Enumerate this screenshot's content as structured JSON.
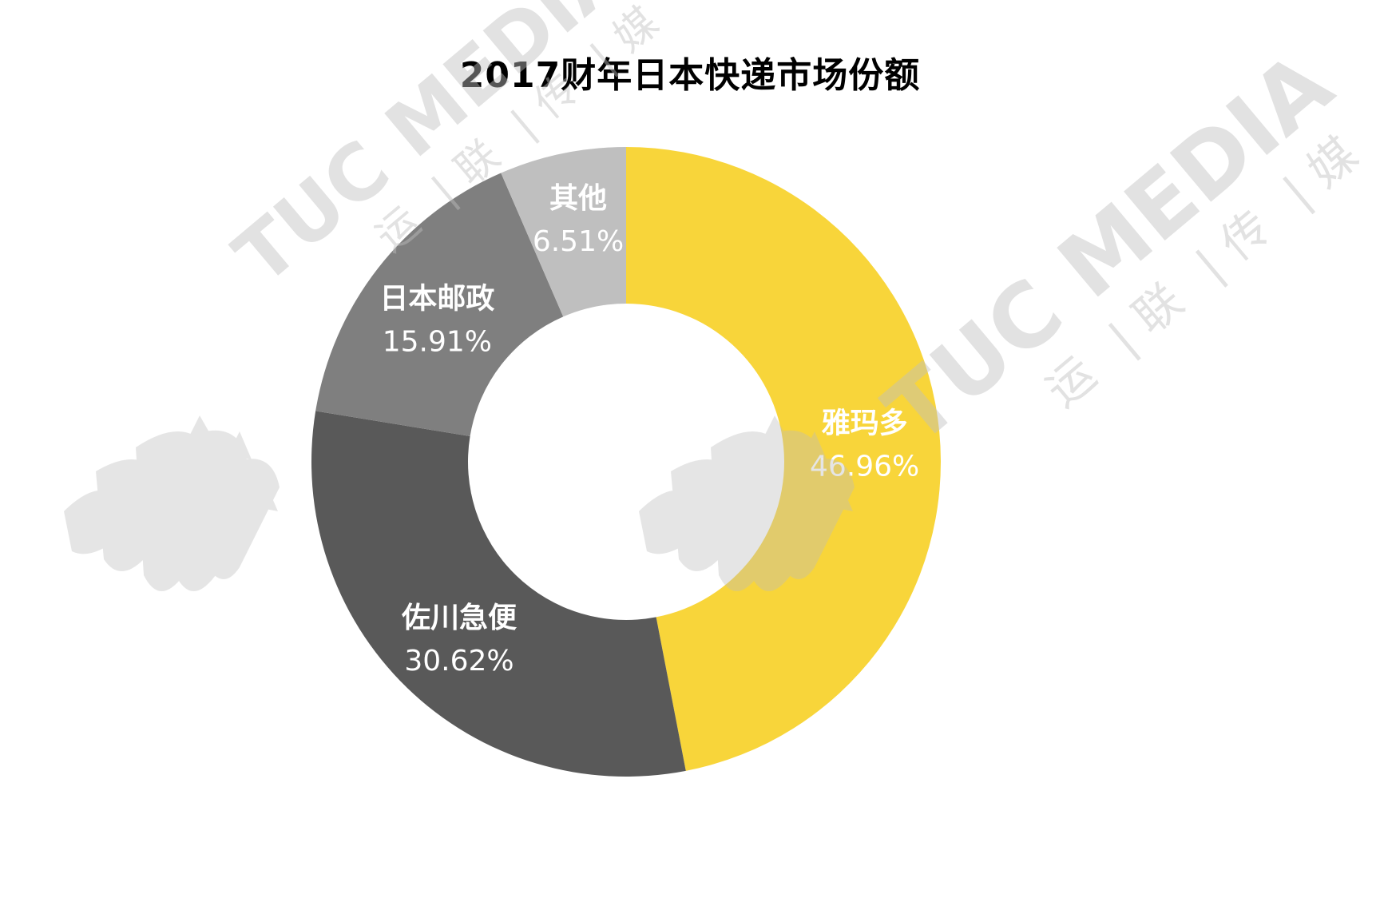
{
  "title": "2017财年日本快递市场份额",
  "chart_data": {
    "type": "pie",
    "title": "2017财年日本快递市场份额",
    "donut": true,
    "slices": [
      {
        "label": "雅玛多",
        "value": 46.96,
        "display": "46.96%",
        "color": "#f8d53a"
      },
      {
        "label": "佐川急便",
        "value": 30.62,
        "display": "30.62%",
        "color": "#595959"
      },
      {
        "label": "日本邮政",
        "value": 15.91,
        "display": "15.91%",
        "color": "#7f7f7f"
      },
      {
        "label": "其他",
        "value": 6.51,
        "display": "6.51%",
        "color": "#bfbfbf"
      }
    ]
  },
  "watermark": {
    "brand": "TUC MEDIA",
    "chinese": [
      "运",
      "联",
      "传",
      "媒"
    ]
  }
}
